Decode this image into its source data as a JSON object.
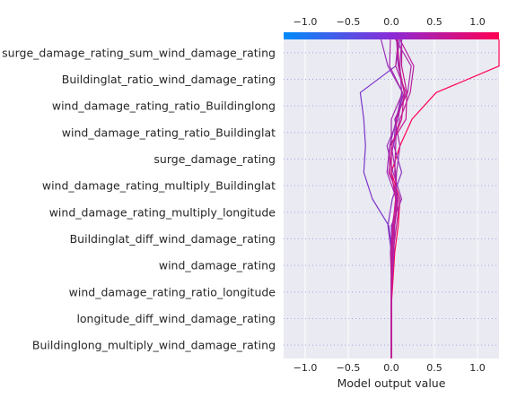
{
  "chart_data": {
    "type": "line",
    "chart_kind": "shap-decision-plot",
    "xlabel": "Model output value",
    "xlim": [
      -1.25,
      1.25
    ],
    "xticks": [
      -1.0,
      -0.5,
      0.0,
      0.5,
      1.0
    ],
    "xtick_labels": [
      "−1.0",
      "−0.5",
      "0.0",
      "0.5",
      "1.0"
    ],
    "base_value": 0.0,
    "features": [
      "surge_damage_rating_sum_wind_damage_rating",
      "Buildinglat_ratio_wind_damage_rating",
      "wind_damage_rating_ratio_Buildinglong",
      "wind_damage_rating_ratio_Buildinglat",
      "surge_damage_rating",
      "wind_damage_rating_multiply_Buildinglat",
      "wind_damage_rating_multiply_longitude",
      "Buildinglat_diff_wind_damage_rating",
      "wind_damage_rating",
      "wind_damage_rating_ratio_longitude",
      "longitude_diff_wind_damage_rating",
      "Buildinglong_multiply_wind_damage_rating"
    ],
    "grid": true,
    "colorbar": {
      "position": "top",
      "colors": [
        "#008bfb",
        "#ff0052"
      ]
    },
    "series": [
      {
        "color": "#ff0052",
        "values": [
          0.0,
          0.0,
          0.0,
          0.02,
          0.04,
          0.08,
          0.1,
          0.0,
          0.1,
          0.24,
          0.52,
          1.25,
          1.25
        ]
      },
      {
        "color": "#7b35c9",
        "values": [
          0.0,
          0.0,
          0.0,
          0.0,
          0.01,
          -0.03,
          -0.22,
          -0.32,
          -0.3,
          -0.32,
          -0.36,
          0.05,
          0.1
        ]
      },
      {
        "color": "#9a2fb8",
        "values": [
          0.0,
          0.0,
          0.0,
          0.0,
          0.01,
          0.0,
          0.12,
          0.02,
          -0.05,
          0.08,
          0.13,
          -0.04,
          -0.12
        ]
      },
      {
        "color": "#b81d9c",
        "values": [
          0.0,
          0.0,
          0.0,
          0.0,
          0.02,
          0.06,
          0.1,
          -0.03,
          0.02,
          0.1,
          0.22,
          0.26,
          0.1
        ]
      },
      {
        "color": "#c4188f",
        "values": [
          0.0,
          0.0,
          0.0,
          0.0,
          0.01,
          0.04,
          0.08,
          -0.02,
          -0.02,
          0.17,
          0.18,
          0.12,
          0.12
        ]
      },
      {
        "color": "#9e2ab5",
        "values": [
          0.0,
          0.0,
          0.0,
          0.0,
          -0.01,
          0.01,
          0.06,
          -0.05,
          -0.02,
          0.06,
          0.12,
          0.1,
          0.12
        ]
      },
      {
        "color": "#8a30bf",
        "values": [
          0.0,
          0.0,
          0.0,
          0.0,
          0.0,
          -0.04,
          0.01,
          0.12,
          0.03,
          0.05,
          0.15,
          0.08,
          0.06
        ]
      },
      {
        "color": "#a527aa",
        "values": [
          0.0,
          0.0,
          0.0,
          0.01,
          0.03,
          0.04,
          0.06,
          0.05,
          0.0,
          0.0,
          0.13,
          -0.02,
          -0.01
        ]
      },
      {
        "color": "#ad24a6",
        "values": [
          0.0,
          0.0,
          0.0,
          0.0,
          0.0,
          0.02,
          0.05,
          0.06,
          0.1,
          0.04,
          0.19,
          0.23,
          0.05
        ]
      },
      {
        "color": "#b71f9d",
        "values": [
          0.0,
          0.0,
          0.0,
          0.0,
          0.01,
          0.03,
          0.07,
          0.04,
          0.05,
          0.06,
          0.17,
          0.05,
          0.08
        ]
      },
      {
        "color": "#c9168b",
        "values": [
          0.0,
          0.0,
          0.0,
          0.0,
          0.0,
          0.02,
          0.05,
          0.0,
          0.0,
          0.12,
          0.15,
          0.09,
          0.07
        ]
      }
    ]
  }
}
